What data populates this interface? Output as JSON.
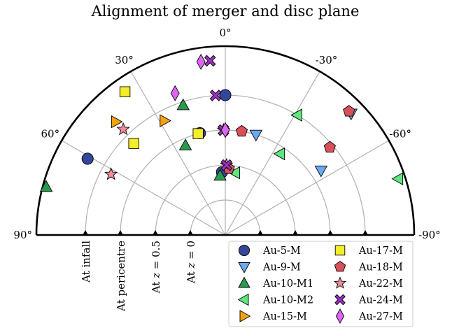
{
  "chart_data": {
    "type": "scatter",
    "projection": "polar-half",
    "title": "Alignment of merger and disc plane",
    "angle_ticks": [
      {
        "label": "0°",
        "deg": 0
      },
      {
        "label": "30°",
        "deg": 30
      },
      {
        "label": "-30°",
        "deg": -30
      },
      {
        "label": "60°",
        "deg": 60
      },
      {
        "label": "-60°",
        "deg": -60
      },
      {
        "label": "90°",
        "deg": 90
      },
      {
        "label": "-90°",
        "deg": -90
      }
    ],
    "spoke_angles": [
      60,
      30,
      0,
      -30,
      -60
    ],
    "radial_ticks": [
      {
        "label": "At infall",
        "r": 4
      },
      {
        "label": "At pericentre",
        "r": 3
      },
      {
        "label": "At z = 0.5",
        "label_main": "At ",
        "label_italic": "z",
        "label_rest": " = 0.5",
        "r": 2
      },
      {
        "label": "At z = 0",
        "label_main": "At ",
        "label_italic": "z",
        "label_rest": " = 0",
        "r": 1
      }
    ],
    "rlim": [
      0,
      5.4
    ],
    "grid": true,
    "legend_placement": "lower-right",
    "series": [
      {
        "name": "Au-5-M",
        "marker": "circle",
        "color": "#33469a",
        "points": [
          {
            "theta": 0,
            "r": 4
          },
          {
            "theta": 14,
            "r": 3
          },
          {
            "theta": 61,
            "r": 4.5
          },
          {
            "theta": 3,
            "r": 1.8
          }
        ]
      },
      {
        "name": "Au-9-M",
        "marker": "triangle-down",
        "color": "#6ca8ee",
        "points": [
          {
            "theta": -17,
            "r": 3
          },
          {
            "theta": -46,
            "r": 5
          },
          {
            "theta": -56,
            "r": 3.3
          }
        ]
      },
      {
        "name": "Au-10-M1",
        "marker": "triangle-up",
        "color": "#2a9a4e",
        "points": [
          {
            "theta": 18,
            "r": 3.9
          },
          {
            "theta": 24,
            "r": 2.8
          },
          {
            "theta": 5,
            "r": 1.7
          },
          {
            "theta": 75,
            "r": 5.3
          }
        ]
      },
      {
        "name": "Au-10-M2",
        "marker": "triangle-left",
        "color": "#5de77e",
        "points": [
          {
            "theta": -31,
            "r": 4
          },
          {
            "theta": -34,
            "r": 2.8
          },
          {
            "theta": -9,
            "r": 1.8
          },
          {
            "theta": -72,
            "r": 5.2
          }
        ]
      },
      {
        "name": "Au-15-M",
        "marker": "triangle-right",
        "color": "#f2a112",
        "points": [
          {
            "theta": 44,
            "r": 4.5
          },
          {
            "theta": 28,
            "r": 3.7
          }
        ]
      },
      {
        "name": "Au-17-M",
        "marker": "square",
        "color": "#f4ee2a",
        "points": [
          {
            "theta": 35,
            "r": 5
          },
          {
            "theta": 45,
            "r": 3.7
          },
          {
            "theta": 15,
            "r": 3
          }
        ]
      },
      {
        "name": "Au-18-M",
        "marker": "pentagon",
        "color": "#d8515a",
        "points": [
          {
            "theta": -9,
            "r": 3
          },
          {
            "theta": -45,
            "r": 5
          },
          {
            "theta": -50,
            "r": 3.9
          },
          {
            "theta": -3,
            "r": 1.9
          }
        ]
      },
      {
        "name": "Au-22-M",
        "marker": "star",
        "color": "#f48c9a",
        "points": [
          {
            "theta": 44,
            "r": 4.2
          },
          {
            "theta": 62,
            "r": 3.7
          },
          {
            "theta": 1,
            "r": 3
          },
          {
            "theta": -1,
            "r": 2
          }
        ]
      },
      {
        "name": "Au-24-M",
        "marker": "x-filled",
        "color": "#9a2fc1",
        "points": [
          {
            "theta": 5,
            "r": 5
          },
          {
            "theta": 4,
            "r": 4
          },
          {
            "theta": 1,
            "r": 3
          },
          {
            "theta": -1,
            "r": 2
          }
        ]
      },
      {
        "name": "Au-27-M",
        "marker": "diamond",
        "color": "#dd66f0",
        "points": [
          {
            "theta": 8,
            "r": 5
          },
          {
            "theta": 19.5,
            "r": 4.3
          },
          {
            "theta": 0,
            "r": 3
          }
        ]
      }
    ]
  }
}
